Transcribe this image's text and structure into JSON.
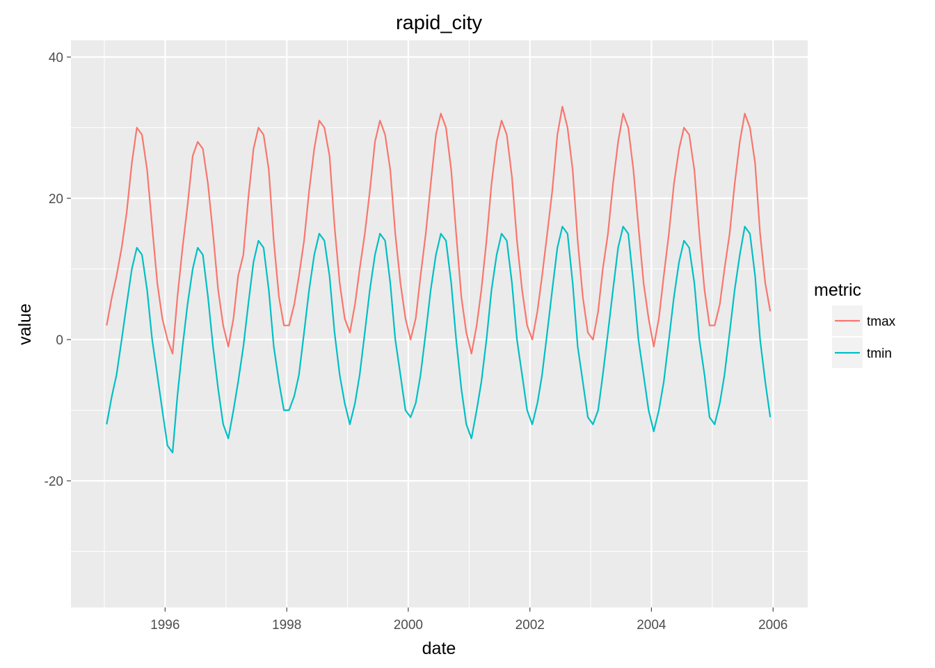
{
  "chart_data": {
    "type": "line",
    "title": "rapid_city",
    "xlabel": "date",
    "ylabel": "value",
    "x_range": [
      "1995-01-01",
      "2005-12-31"
    ],
    "ylim": [
      -38,
      40
    ],
    "x_ticks": [
      "1996",
      "1998",
      "2000",
      "2002",
      "2004",
      "2006"
    ],
    "y_ticks": [
      "-20",
      "0",
      "20",
      "40"
    ],
    "grid": true,
    "legend": {
      "title": "metric",
      "position": "right"
    },
    "series": [
      {
        "name": "tmax",
        "color": "#F8766D",
        "note_sampling": "monthly",
        "x": [
          "1995-01-15",
          "1995-02-15",
          "1995-03-15",
          "1995-04-15",
          "1995-05-15",
          "1995-06-15",
          "1995-07-15",
          "1995-08-15",
          "1995-09-15",
          "1995-10-15",
          "1995-11-15",
          "1995-12-15",
          "1996-01-15",
          "1996-02-15",
          "1996-03-15",
          "1996-04-15",
          "1996-05-15",
          "1996-06-15",
          "1996-07-15",
          "1996-08-15",
          "1996-09-15",
          "1996-10-15",
          "1996-11-15",
          "1996-12-15",
          "1997-01-15",
          "1997-02-15",
          "1997-03-15",
          "1997-04-15",
          "1997-05-15",
          "1997-06-15",
          "1997-07-15",
          "1997-08-15",
          "1997-09-15",
          "1997-10-15",
          "1997-11-15",
          "1997-12-15",
          "1998-01-15",
          "1998-02-15",
          "1998-03-15",
          "1998-04-15",
          "1998-05-15",
          "1998-06-15",
          "1998-07-15",
          "1998-08-15",
          "1998-09-15",
          "1998-10-15",
          "1998-11-15",
          "1998-12-15",
          "1999-01-15",
          "1999-02-15",
          "1999-03-15",
          "1999-04-15",
          "1999-05-15",
          "1999-06-15",
          "1999-07-15",
          "1999-08-15",
          "1999-09-15",
          "1999-10-15",
          "1999-11-15",
          "1999-12-15",
          "2000-01-15",
          "2000-02-15",
          "2000-03-15",
          "2000-04-15",
          "2000-05-15",
          "2000-06-15",
          "2000-07-15",
          "2000-08-15",
          "2000-09-15",
          "2000-10-15",
          "2000-11-15",
          "2000-12-15",
          "2001-01-15",
          "2001-02-15",
          "2001-03-15",
          "2001-04-15",
          "2001-05-15",
          "2001-06-15",
          "2001-07-15",
          "2001-08-15",
          "2001-09-15",
          "2001-10-15",
          "2001-11-15",
          "2001-12-15",
          "2002-01-15",
          "2002-02-15",
          "2002-03-15",
          "2002-04-15",
          "2002-05-15",
          "2002-06-15",
          "2002-07-15",
          "2002-08-15",
          "2002-09-15",
          "2002-10-15",
          "2002-11-15",
          "2002-12-15",
          "2003-01-15",
          "2003-02-15",
          "2003-03-15",
          "2003-04-15",
          "2003-05-15",
          "2003-06-15",
          "2003-07-15",
          "2003-08-15",
          "2003-09-15",
          "2003-10-15",
          "2003-11-15",
          "2003-12-15",
          "2004-01-15",
          "2004-02-15",
          "2004-03-15",
          "2004-04-15",
          "2004-05-15",
          "2004-06-15",
          "2004-07-15",
          "2004-08-15",
          "2004-09-15",
          "2004-10-15",
          "2004-11-15",
          "2004-12-15",
          "2005-01-15",
          "2005-02-15",
          "2005-03-15",
          "2005-04-15",
          "2005-05-15",
          "2005-06-15",
          "2005-07-15",
          "2005-08-15",
          "2005-09-15",
          "2005-10-15",
          "2005-11-15",
          "2005-12-15"
        ],
        "values": [
          2,
          6,
          9,
          13,
          18,
          25,
          30,
          29,
          24,
          16,
          8,
          3,
          0,
          -2,
          6,
          13,
          19,
          26,
          28,
          27,
          22,
          15,
          7,
          2,
          -1,
          3,
          9,
          12,
          20,
          27,
          30,
          29,
          24,
          14,
          6,
          2,
          2,
          5,
          9,
          14,
          21,
          27,
          31,
          30,
          26,
          16,
          8,
          3,
          1,
          5,
          10,
          15,
          21,
          28,
          31,
          29,
          24,
          15,
          8,
          3,
          0,
          3,
          9,
          15,
          22,
          29,
          32,
          30,
          24,
          15,
          6,
          1,
          -2,
          2,
          7,
          14,
          22,
          28,
          31,
          29,
          23,
          14,
          7,
          2,
          0,
          4,
          9,
          15,
          21,
          29,
          33,
          30,
          24,
          14,
          6,
          1,
          0,
          4,
          10,
          15,
          22,
          28,
          32,
          30,
          24,
          16,
          8,
          3,
          -1,
          3,
          9,
          15,
          22,
          27,
          30,
          29,
          24,
          15,
          7,
          2,
          2,
          5,
          10,
          15,
          22,
          28,
          32,
          30,
          25,
          15,
          8,
          4
        ]
      },
      {
        "name": "tmin",
        "color": "#00BFC4",
        "note_sampling": "monthly",
        "x": [
          "1995-01-15",
          "1995-02-15",
          "1995-03-15",
          "1995-04-15",
          "1995-05-15",
          "1995-06-15",
          "1995-07-15",
          "1995-08-15",
          "1995-09-15",
          "1995-10-15",
          "1995-11-15",
          "1995-12-15",
          "1996-01-15",
          "1996-02-15",
          "1996-03-15",
          "1996-04-15",
          "1996-05-15",
          "1996-06-15",
          "1996-07-15",
          "1996-08-15",
          "1996-09-15",
          "1996-10-15",
          "1996-11-15",
          "1996-12-15",
          "1997-01-15",
          "1997-02-15",
          "1997-03-15",
          "1997-04-15",
          "1997-05-15",
          "1997-06-15",
          "1997-07-15",
          "1997-08-15",
          "1997-09-15",
          "1997-10-15",
          "1997-11-15",
          "1997-12-15",
          "1998-01-15",
          "1998-02-15",
          "1998-03-15",
          "1998-04-15",
          "1998-05-15",
          "1998-06-15",
          "1998-07-15",
          "1998-08-15",
          "1998-09-15",
          "1998-10-15",
          "1998-11-15",
          "1998-12-15",
          "1999-01-15",
          "1999-02-15",
          "1999-03-15",
          "1999-04-15",
          "1999-05-15",
          "1999-06-15",
          "1999-07-15",
          "1999-08-15",
          "1999-09-15",
          "1999-10-15",
          "1999-11-15",
          "1999-12-15",
          "2000-01-15",
          "2000-02-15",
          "2000-03-15",
          "2000-04-15",
          "2000-05-15",
          "2000-06-15",
          "2000-07-15",
          "2000-08-15",
          "2000-09-15",
          "2000-10-15",
          "2000-11-15",
          "2000-12-15",
          "2001-01-15",
          "2001-02-15",
          "2001-03-15",
          "2001-04-15",
          "2001-05-15",
          "2001-06-15",
          "2001-07-15",
          "2001-08-15",
          "2001-09-15",
          "2001-10-15",
          "2001-11-15",
          "2001-12-15",
          "2002-01-15",
          "2002-02-15",
          "2002-03-15",
          "2002-04-15",
          "2002-05-15",
          "2002-06-15",
          "2002-07-15",
          "2002-08-15",
          "2002-09-15",
          "2002-10-15",
          "2002-11-15",
          "2002-12-15",
          "2003-01-15",
          "2003-02-15",
          "2003-03-15",
          "2003-04-15",
          "2003-05-15",
          "2003-06-15",
          "2003-07-15",
          "2003-08-15",
          "2003-09-15",
          "2003-10-15",
          "2003-11-15",
          "2003-12-15",
          "2004-01-15",
          "2004-02-15",
          "2004-03-15",
          "2004-04-15",
          "2004-05-15",
          "2004-06-15",
          "2004-07-15",
          "2004-08-15",
          "2004-09-15",
          "2004-10-15",
          "2004-11-15",
          "2004-12-15",
          "2005-01-15",
          "2005-02-15",
          "2005-03-15",
          "2005-04-15",
          "2005-05-15",
          "2005-06-15",
          "2005-07-15",
          "2005-08-15",
          "2005-09-15",
          "2005-10-15",
          "2005-11-15",
          "2005-12-15"
        ],
        "values": [
          -12,
          -8,
          -5,
          0,
          5,
          10,
          13,
          12,
          7,
          0,
          -5,
          -10,
          -15,
          -16,
          -8,
          -1,
          5,
          10,
          13,
          12,
          6,
          -1,
          -7,
          -12,
          -14,
          -10,
          -6,
          -1,
          5,
          11,
          14,
          13,
          7,
          -1,
          -6,
          -10,
          -10,
          -8,
          -5,
          1,
          7,
          12,
          15,
          14,
          9,
          1,
          -5,
          -9,
          -12,
          -9,
          -5,
          1,
          7,
          12,
          15,
          14,
          8,
          0,
          -5,
          -10,
          -11,
          -9,
          -5,
          1,
          7,
          12,
          15,
          14,
          8,
          0,
          -7,
          -12,
          -14,
          -10,
          -6,
          0,
          7,
          12,
          15,
          14,
          8,
          0,
          -5,
          -10,
          -12,
          -9,
          -5,
          1,
          7,
          13,
          16,
          15,
          8,
          -1,
          -6,
          -11,
          -12,
          -10,
          -5,
          1,
          7,
          13,
          16,
          15,
          8,
          0,
          -5,
          -10,
          -13,
          -10,
          -6,
          0,
          6,
          11,
          14,
          13,
          8,
          0,
          -5,
          -11,
          -12,
          -9,
          -5,
          1,
          7,
          12,
          16,
          15,
          9,
          0,
          -6,
          -11
        ]
      }
    ]
  }
}
